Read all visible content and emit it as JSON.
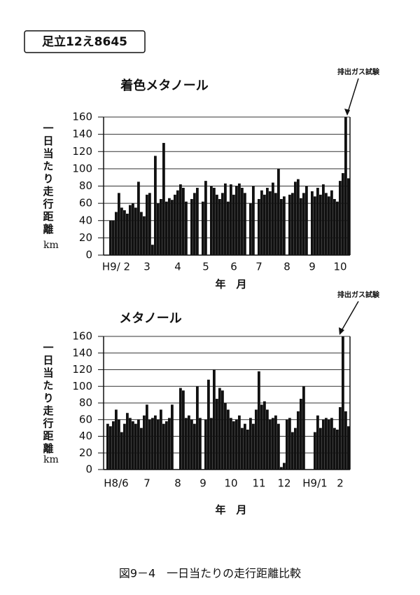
{
  "header": {
    "label": "足立12え8645"
  },
  "chart_data": [
    {
      "type": "bar",
      "title": "着色メタノール",
      "annotation": "排出ガス試験",
      "y_label": "一日当たり走行距離",
      "y_unit": "km",
      "x_label": "年　月",
      "color": "#111111",
      "grid": true,
      "ylim": [
        0,
        160
      ],
      "yticks": [
        0,
        20,
        40,
        60,
        80,
        100,
        120,
        140,
        160
      ],
      "categories": [
        null,
        null,
        null,
        null,
        "H9/ 2",
        null,
        null,
        null,
        null,
        null,
        null,
        null,
        null,
        null,
        null,
        "3",
        null,
        null,
        null,
        null,
        null,
        null,
        null,
        null,
        null,
        null,
        "4",
        null,
        null,
        null,
        null,
        null,
        null,
        null,
        null,
        null,
        "5",
        null,
        null,
        null,
        null,
        null,
        null,
        null,
        null,
        null,
        "6",
        null,
        null,
        null,
        null,
        null,
        null,
        null,
        null,
        "7",
        null,
        null,
        null,
        null,
        null,
        null,
        null,
        null,
        null,
        "8",
        null,
        null,
        null,
        null,
        null,
        null,
        null,
        null,
        "9",
        null,
        null,
        null,
        null,
        null,
        null,
        null,
        null,
        null,
        "10",
        null,
        null,
        null
      ],
      "values": [
        0,
        0,
        40,
        40,
        50,
        72,
        55,
        52,
        48,
        58,
        60,
        55,
        85,
        50,
        45,
        70,
        72,
        12,
        115,
        60,
        65,
        130,
        62,
        66,
        64,
        70,
        75,
        82,
        78,
        62,
        0,
        65,
        72,
        78,
        0,
        62,
        86,
        0,
        80,
        78,
        70,
        65,
        72,
        83,
        62,
        82,
        70,
        80,
        83,
        78,
        72,
        0,
        60,
        80,
        0,
        65,
        75,
        70,
        78,
        74,
        84,
        72,
        100,
        65,
        68,
        0,
        70,
        72,
        85,
        88,
        66,
        72,
        80,
        0,
        74,
        68,
        78,
        70,
        82,
        72,
        68,
        75,
        65,
        62,
        86,
        95,
        160,
        89
      ]
    },
    {
      "type": "bar",
      "title": "メタノール",
      "annotation": "排出ガス試験",
      "y_label": "一日当たり走行距離",
      "y_unit": "km",
      "x_label": "年　月",
      "color": "#111111",
      "grid": true,
      "ylim": [
        0,
        160
      ],
      "yticks": [
        0,
        20,
        40,
        60,
        80,
        100,
        120,
        140,
        160
      ],
      "categories": [
        null,
        null,
        null,
        null,
        "H8/6",
        null,
        null,
        null,
        null,
        null,
        null,
        null,
        null,
        null,
        null,
        "7",
        null,
        null,
        null,
        null,
        null,
        null,
        null,
        null,
        null,
        null,
        "8",
        null,
        null,
        null,
        null,
        null,
        null,
        null,
        null,
        "9",
        null,
        null,
        null,
        null,
        null,
        null,
        null,
        null,
        null,
        "10",
        null,
        null,
        null,
        null,
        null,
        null,
        null,
        null,
        null,
        "11",
        null,
        null,
        null,
        null,
        null,
        null,
        null,
        null,
        "12",
        null,
        null,
        null,
        null,
        null,
        null,
        null,
        null,
        null,
        null,
        "H9/1",
        null,
        null,
        null,
        null,
        null,
        null,
        null,
        null,
        "2",
        null,
        null,
        null
      ],
      "values": [
        0,
        55,
        52,
        58,
        72,
        60,
        45,
        55,
        68,
        62,
        58,
        55,
        60,
        50,
        65,
        78,
        60,
        62,
        65,
        60,
        72,
        55,
        58,
        62,
        78,
        0,
        0,
        98,
        95,
        62,
        65,
        60,
        55,
        100,
        62,
        0,
        60,
        108,
        62,
        120,
        85,
        98,
        95,
        80,
        72,
        62,
        58,
        60,
        65,
        50,
        55,
        48,
        62,
        55,
        72,
        118,
        78,
        82,
        72,
        60,
        62,
        65,
        55,
        3,
        8,
        60,
        62,
        45,
        50,
        70,
        85,
        100,
        0,
        0,
        0,
        45,
        65,
        50,
        60,
        62,
        60,
        62,
        50,
        48,
        75,
        160,
        70,
        52
      ]
    }
  ],
  "caption": "図9－4　一日当たりの走行距離比較"
}
